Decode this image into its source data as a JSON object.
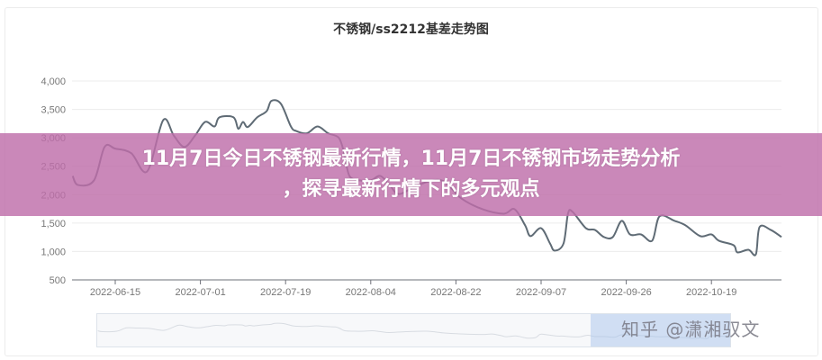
{
  "banner": {
    "line1": "11月7日今日不锈钢最新行情，11月7日不锈钢市场走势分析",
    "line2": "，探寻最新行情下的多元观点",
    "color": "#be6eaa"
  },
  "watermark": "知乎 @潇湘驭文",
  "chart_data": {
    "type": "line",
    "title": "不锈钢/ss2212基差走势图",
    "xlabel": "",
    "ylabel": "",
    "ylim": [
      500,
      4000
    ],
    "yticks": [
      500,
      1000,
      1500,
      2000,
      2500,
      3000,
      3500,
      4000
    ],
    "ytick_labels": [
      "500",
      "1,000",
      "1,500",
      "2,000",
      "2,500",
      "3,000",
      "3,500",
      "4,000"
    ],
    "xtick_labels": [
      "2022-06-15",
      "2022-07-01",
      "2022-07-19",
      "2022-08-04",
      "2022-08-22",
      "2022-09-07",
      "2022-09-26",
      "2022-10-19"
    ],
    "grid": true,
    "line_color": "#5f6b75",
    "data_zoom_slider": true,
    "series": [
      {
        "x": [
          "2022-06-07",
          "2022-06-08",
          "2022-06-11",
          "2022-06-13",
          "2022-06-15",
          "2022-06-18",
          "2022-06-21",
          "2022-06-24",
          "2022-06-26",
          "2022-06-28",
          "2022-06-30",
          "2022-07-02",
          "2022-07-04",
          "2022-07-05",
          "2022-07-08",
          "2022-07-09",
          "2022-07-10",
          "2022-07-11",
          "2022-07-13",
          "2022-07-15",
          "2022-07-16",
          "2022-07-18",
          "2022-07-20",
          "2022-07-21",
          "2022-07-23",
          "2022-07-25",
          "2022-07-27",
          "2022-07-29",
          "2022-07-30",
          "2022-07-31",
          "2022-08-02",
          "2022-08-04",
          "2022-08-06",
          "2022-08-08",
          "2022-08-10",
          "2022-08-14",
          "2022-08-19",
          "2022-08-23",
          "2022-08-27",
          "2022-08-31",
          "2022-09-02",
          "2022-09-04",
          "2022-09-05",
          "2022-09-07",
          "2022-09-09",
          "2022-09-10",
          "2022-09-12",
          "2022-09-13",
          "2022-09-14",
          "2022-09-17",
          "2022-09-19",
          "2022-09-21",
          "2022-09-23",
          "2022-09-25",
          "2022-09-27",
          "2022-09-30",
          "2022-10-03",
          "2022-10-05",
          "2022-10-09",
          "2022-10-12",
          "2022-10-16",
          "2022-10-19",
          "2022-10-21",
          "2022-10-25",
          "2022-10-26",
          "2022-10-29",
          "2022-10-31",
          "2022-11-01",
          "2022-11-04",
          "2022-11-07"
        ],
        "values": [
          2330,
          2170,
          2250,
          2840,
          2810,
          2730,
          2410,
          3310,
          3040,
          2840,
          3040,
          3280,
          3200,
          3360,
          3360,
          3160,
          3280,
          3190,
          3360,
          3470,
          3650,
          3600,
          3200,
          3120,
          3080,
          3200,
          3080,
          3000,
          2730,
          2330,
          2250,
          2250,
          2330,
          2170,
          2010,
          2170,
          2250,
          1935,
          1745,
          1665,
          1745,
          1460,
          1270,
          1410,
          1140,
          1015,
          1140,
          1665,
          1700,
          1410,
          1380,
          1255,
          1255,
          1540,
          1300,
          1300,
          1190,
          1620,
          1540,
          1460,
          1270,
          1300,
          1190,
          1110,
          985,
          1030,
          950,
          1430,
          1380,
          1255
        ]
      }
    ]
  }
}
